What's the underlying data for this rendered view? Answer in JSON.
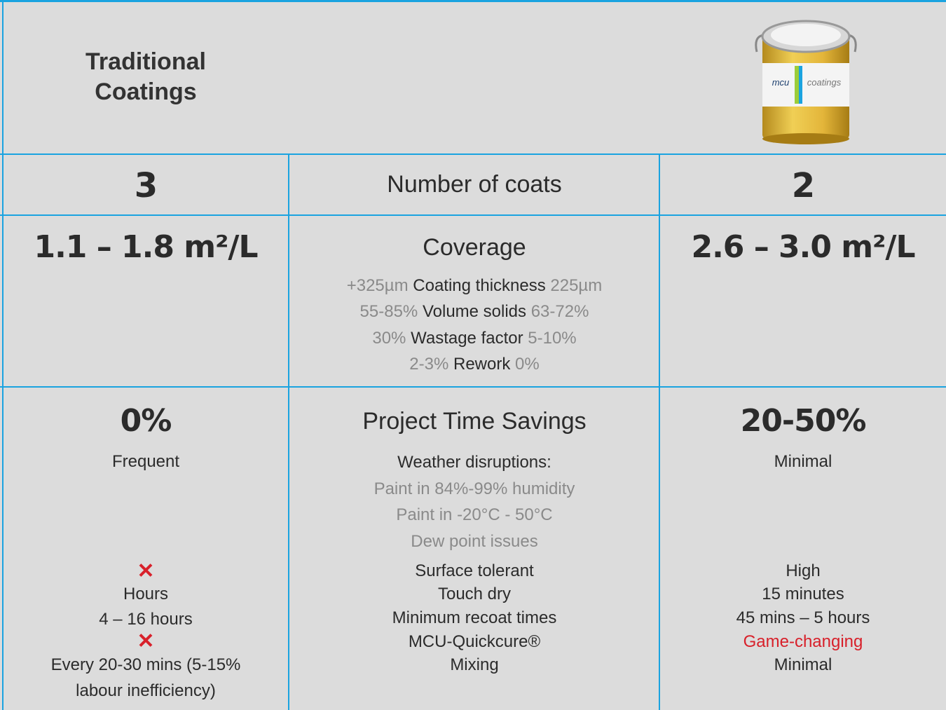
{
  "header": {
    "left_lines": [
      "Traditional",
      "Coatings"
    ],
    "can_label": [
      "mcu",
      "coatings"
    ]
  },
  "rows": [
    {
      "left": "3",
      "center": "Number of coats",
      "right": "2"
    },
    {
      "left": "1.1 – 1.8 m²/L",
      "center": "Coverage",
      "right": "2.6 – 3.0 m²/L",
      "details": [
        {
          "traditional": "+325µm",
          "label": "Coating thickness",
          "mcu": "225µm"
        },
        {
          "traditional": "55-85%",
          "label": "Volume solids",
          "mcu": "63-72%"
        },
        {
          "traditional": "30%",
          "label": "Wastage factor",
          "mcu": "5-10%"
        },
        {
          "traditional": "2-3%",
          "label": "Rework",
          "mcu": "0%"
        }
      ]
    },
    {
      "left": "0%",
      "center": "Project Time Savings",
      "right": "20-50%",
      "left_lines": [
        "Frequent",
        "Hours",
        "4 – 16 hours",
        "Every 20-30 mins (5-15%",
        "labour inefficiency)"
      ],
      "center_title": "Weather disruptions:",
      "center_notes": [
        "Paint in 84%-99% humidity",
        "Paint in -20°C - 50°C",
        "Dew point issues"
      ],
      "center_lines": [
        "Surface tolerant",
        "Touch dry",
        "Minimum recoat times",
        "MCU-Quickcure®",
        "Mixing"
      ],
      "right_lines": [
        "Minimal",
        "High",
        "15 minutes",
        "45 mins – 5 hours",
        "Game-changing",
        "Minimal"
      ]
    }
  ]
}
